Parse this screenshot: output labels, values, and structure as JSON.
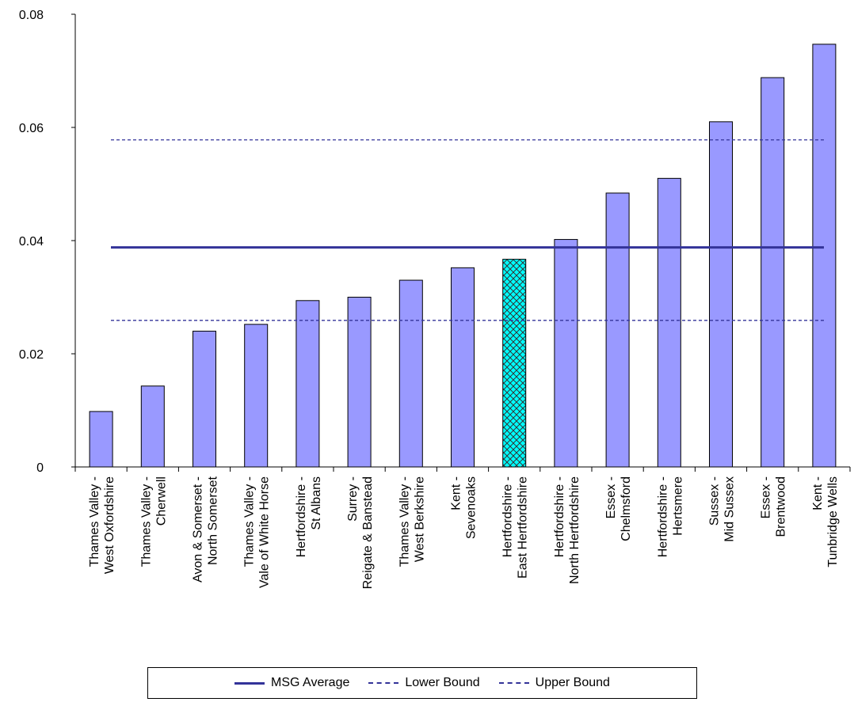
{
  "chart_data": {
    "type": "bar",
    "title": "",
    "xlabel": "",
    "ylabel": "",
    "ylim": [
      0,
      0.08
    ],
    "yticks": [
      0,
      0.02,
      0.04,
      0.06,
      0.08
    ],
    "ytick_labels": [
      "0",
      "0.02",
      "0.04",
      "0.06",
      "0.08"
    ],
    "categories": [
      [
        "Thames Valley -",
        "West Oxfordshire"
      ],
      [
        "Thames Valley -",
        "Cherwell"
      ],
      [
        "Avon & Somerset -",
        "North Somerset"
      ],
      [
        "Thames Valley -",
        "Vale of White Horse"
      ],
      [
        "Hertfordshire -",
        "St Albans"
      ],
      [
        "Surrey -",
        "Reigate & Banstead"
      ],
      [
        "Thames Valley -",
        "West Berkshire"
      ],
      [
        "Kent -",
        "Sevenoaks"
      ],
      [
        "Hertfordshire -",
        "East Hertfordshire"
      ],
      [
        "Hertfordshire -",
        "North Hertfordshire"
      ],
      [
        "Essex -",
        "Chelmsford"
      ],
      [
        "Hertfordshire -",
        "Hertsmere"
      ],
      [
        "Sussex -",
        "Mid Sussex"
      ],
      [
        "Essex -",
        "Brentwood"
      ],
      [
        "Kent -",
        "Tunbridge Wells"
      ]
    ],
    "values": [
      0.0098,
      0.0143,
      0.024,
      0.0252,
      0.0294,
      0.03,
      0.033,
      0.0352,
      0.0367,
      0.0402,
      0.0484,
      0.051,
      0.061,
      0.0688,
      0.0747
    ],
    "highlight_index": 8,
    "lines": [
      {
        "name": "MSG Average",
        "value": 0.0388,
        "style": "solid"
      },
      {
        "name": "Lower Bound",
        "value": 0.0259,
        "style": "dashed"
      },
      {
        "name": "Upper Bound",
        "value": 0.0578,
        "style": "dashed"
      }
    ],
    "colors": {
      "bar_fill": "#9999ff",
      "highlight_fill": "#00ffff",
      "highlight_pattern": "#333333",
      "bar_stroke": "#000000",
      "line": "#333399",
      "axis": "#000000"
    },
    "legend_position": "bottom",
    "grid": false
  }
}
